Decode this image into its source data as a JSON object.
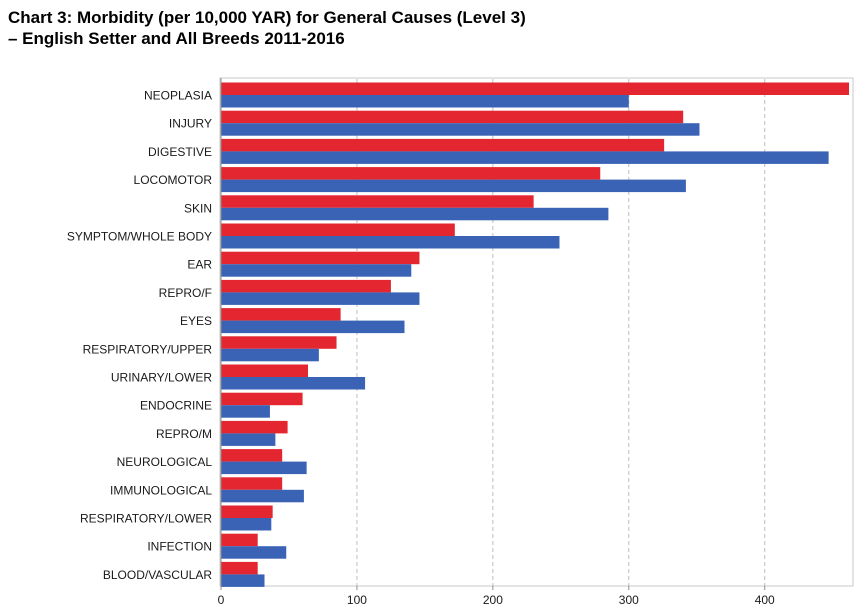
{
  "chart_data": {
    "type": "bar",
    "orientation": "horizontal",
    "title_line1": "Chart 3: Morbidity (per 10,000 YAR) for General Causes (Level 3)",
    "title_line2": "–  English Setter and All Breeds 2011-2016",
    "xlabel": "",
    "ylabel": "",
    "xlim": [
      0,
      462
    ],
    "xticks": [
      0,
      100,
      200,
      300,
      400
    ],
    "grid": true,
    "legend": "none",
    "categories": [
      "NEOPLASIA",
      "INJURY",
      "DIGESTIVE",
      "LOCOMOTOR",
      "SKIN",
      "SYMPTOM/WHOLE BODY",
      "EAR",
      "REPRO/F",
      "EYES",
      "RESPIRATORY/UPPER",
      "URINARY/LOWER",
      "ENDOCRINE",
      "REPRO/M",
      "NEUROLOGICAL",
      "IMMUNOLOGICAL",
      "RESPIRATORY/LOWER",
      "INFECTION",
      "BLOOD/VASCULAR"
    ],
    "series": [
      {
        "name": "English Setter",
        "color": "#e3262f",
        "values": [
          462,
          340,
          326,
          279,
          230,
          172,
          146,
          125,
          88,
          85,
          64,
          60,
          49,
          45,
          45,
          38,
          27,
          27
        ]
      },
      {
        "name": "All Breeds",
        "color": "#3a63b5",
        "values": [
          300,
          352,
          447,
          342,
          285,
          249,
          140,
          146,
          135,
          72,
          106,
          36,
          40,
          63,
          61,
          37,
          48,
          32
        ]
      }
    ]
  }
}
